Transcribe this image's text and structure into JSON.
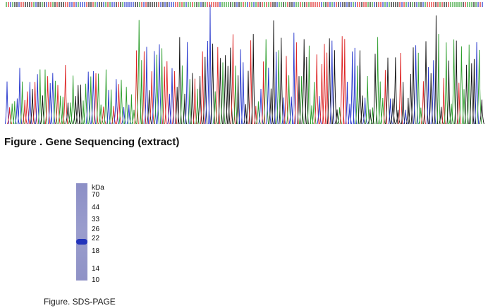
{
  "figures": [
    {
      "caption": "Figure . Gene Sequencing (extract)"
    },
    {
      "caption": "Figure. SDS-PAGE",
      "unit": "kDa",
      "markers": [
        "70",
        "44",
        "33",
        "26",
        "22",
        "18",
        "14",
        "10"
      ]
    }
  ]
}
